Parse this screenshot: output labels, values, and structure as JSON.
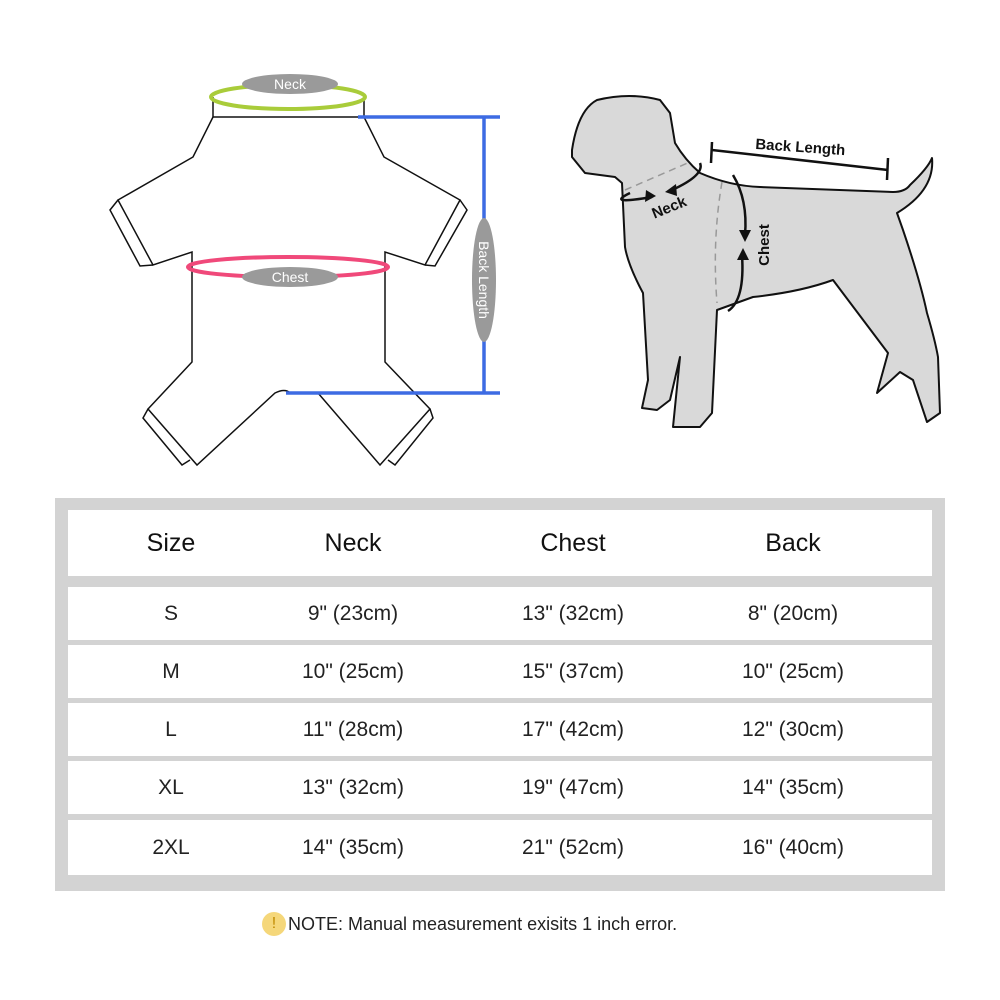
{
  "garment_diagram": {
    "neck_label": "Neck",
    "chest_label": "Chest",
    "back_length_label": "Back Length",
    "colors": {
      "neck": "#a9cc3a",
      "chest": "#f0497a",
      "back_length": "#3d6be3",
      "label_pill": "#9a9a9a"
    }
  },
  "dog_diagram": {
    "back_length_label": "Back Length",
    "neck_label": "Neck",
    "chest_label": "Chest",
    "body_color": "#d9d9d9"
  },
  "table": {
    "headers": [
      "Size",
      "Neck",
      "Chest",
      "Back"
    ],
    "rows": [
      [
        "S",
        "9\" (23cm)",
        "13\" (32cm)",
        "8\" (20cm)"
      ],
      [
        "M",
        "10\" (25cm)",
        "15\" (37cm)",
        "10\" (25cm)"
      ],
      [
        "L",
        "11\" (28cm)",
        "17\" (42cm)",
        "12\" (30cm)"
      ],
      [
        "XL",
        "13\" (32cm)",
        "19\" (47cm)",
        "14\" (35cm)"
      ],
      [
        "2XL",
        "14\" (35cm)",
        "21\" (52cm)",
        "16\" (40cm)"
      ]
    ]
  },
  "note": {
    "icon": "warning-icon",
    "icon_glyph": "!",
    "text": "NOTE: Manual measurement exisits 1 inch error."
  }
}
